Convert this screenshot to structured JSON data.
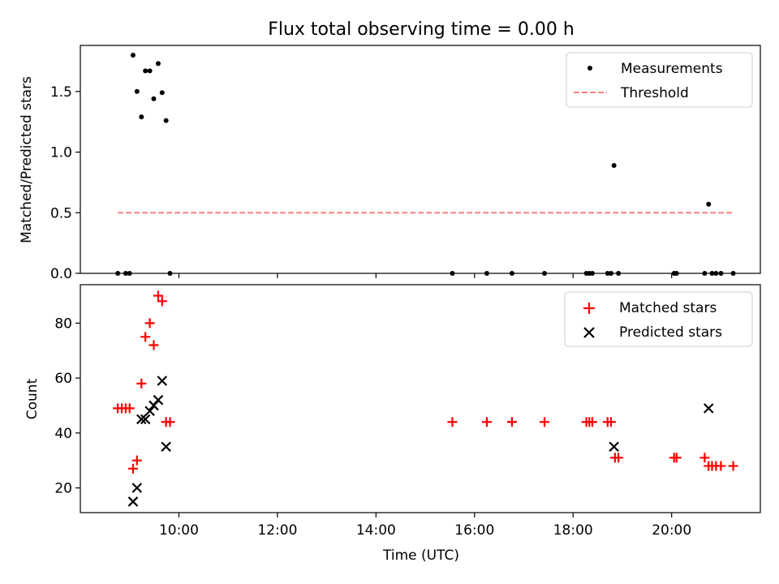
{
  "title": "Flux total observing time = 0.00 h",
  "chart_data": [
    {
      "type": "scatter",
      "panel": "top",
      "ylabel": "Matched/Predicted stars",
      "xlim": [
        8.0,
        21.8
      ],
      "ylim": [
        0,
        1.88
      ],
      "yticks": [
        0.0,
        0.5,
        1.0,
        1.5
      ],
      "ytick_labels": [
        "0.0",
        "0.5",
        "1.0",
        "1.5"
      ],
      "legend_position": "top-right",
      "series": [
        {
          "name": "Measurements",
          "color": "#000000",
          "marker": "dot",
          "points": [
            [
              8.76,
              0
            ],
            [
              8.92,
              0
            ],
            [
              9.0,
              0
            ],
            [
              9.82,
              0
            ],
            [
              9.07,
              1.8
            ],
            [
              9.15,
              1.5
            ],
            [
              9.24,
              1.29
            ],
            [
              9.32,
              1.67
            ],
            [
              9.41,
              1.67
            ],
            [
              9.49,
              1.44
            ],
            [
              9.58,
              1.73
            ],
            [
              9.66,
              1.49
            ],
            [
              9.74,
              1.26
            ],
            [
              15.55,
              0
            ],
            [
              16.25,
              0
            ],
            [
              16.76,
              0
            ],
            [
              17.42,
              0
            ],
            [
              18.27,
              0
            ],
            [
              18.33,
              0
            ],
            [
              18.39,
              0
            ],
            [
              18.7,
              0
            ],
            [
              18.77,
              0
            ],
            [
              18.92,
              0
            ],
            [
              18.83,
              0.89
            ],
            [
              20.05,
              0
            ],
            [
              20.1,
              0
            ],
            [
              20.67,
              0
            ],
            [
              20.82,
              0
            ],
            [
              20.9,
              0
            ],
            [
              21.0,
              0
            ],
            [
              21.25,
              0
            ],
            [
              20.75,
              0.57
            ]
          ]
        },
        {
          "name": "Threshold",
          "color": "#ff7f7f",
          "line_style": "dashed",
          "points": [
            [
              8.76,
              0.5
            ],
            [
              21.25,
              0.5
            ]
          ]
        }
      ]
    },
    {
      "type": "scatter",
      "panel": "bottom",
      "xlabel": "Time (UTC)",
      "ylabel": "Count",
      "xlim": [
        8.0,
        21.8
      ],
      "ylim": [
        11,
        94
      ],
      "xticks": [
        10,
        12,
        14,
        16,
        18,
        20
      ],
      "xtick_labels": [
        "10:00",
        "12:00",
        "14:00",
        "16:00",
        "18:00",
        "20:00"
      ],
      "yticks": [
        20,
        40,
        60,
        80
      ],
      "ytick_labels": [
        "20",
        "40",
        "60",
        "80"
      ],
      "legend_position": "top-right",
      "series": [
        {
          "name": "Matched stars",
          "color": "#ff0000",
          "marker": "plus",
          "points": [
            [
              8.76,
              49
            ],
            [
              8.84,
              49
            ],
            [
              8.92,
              49
            ],
            [
              9.0,
              49
            ],
            [
              9.07,
              27
            ],
            [
              9.15,
              30
            ],
            [
              9.24,
              58
            ],
            [
              9.32,
              75
            ],
            [
              9.41,
              80
            ],
            [
              9.49,
              72
            ],
            [
              9.58,
              90
            ],
            [
              9.66,
              88
            ],
            [
              9.74,
              44
            ],
            [
              9.82,
              44
            ],
            [
              15.55,
              44
            ],
            [
              16.25,
              44
            ],
            [
              16.76,
              44
            ],
            [
              17.42,
              44
            ],
            [
              18.27,
              44
            ],
            [
              18.33,
              44
            ],
            [
              18.39,
              44
            ],
            [
              18.7,
              44
            ],
            [
              18.77,
              44
            ],
            [
              18.85,
              31
            ],
            [
              18.92,
              31
            ],
            [
              20.05,
              31
            ],
            [
              20.1,
              31
            ],
            [
              20.67,
              31
            ],
            [
              20.75,
              28
            ],
            [
              20.82,
              28
            ],
            [
              20.9,
              28
            ],
            [
              21.0,
              28
            ],
            [
              21.25,
              28
            ]
          ]
        },
        {
          "name": "Predicted stars",
          "color": "#000000",
          "marker": "x",
          "points": [
            [
              9.07,
              15
            ],
            [
              9.15,
              20
            ],
            [
              9.24,
              45
            ],
            [
              9.32,
              45
            ],
            [
              9.41,
              48
            ],
            [
              9.49,
              50
            ],
            [
              9.58,
              52
            ],
            [
              9.66,
              59
            ],
            [
              9.74,
              35
            ],
            [
              18.83,
              35
            ],
            [
              20.75,
              49
            ]
          ]
        }
      ]
    }
  ]
}
